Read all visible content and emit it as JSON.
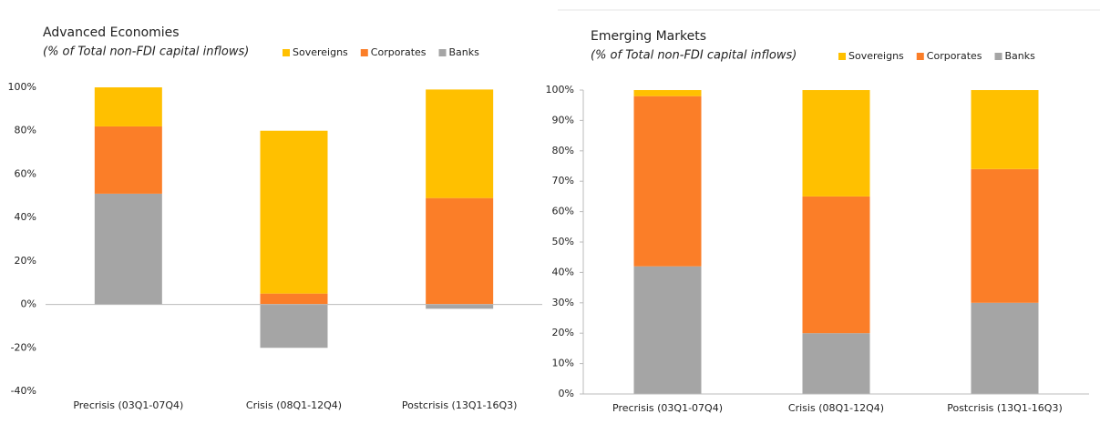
{
  "chart_data": [
    {
      "type": "bar",
      "stacked": true,
      "title": "Advanced Economies",
      "subtitle": "(% of Total non-FDI capital inflows)",
      "categories": [
        "Precrisis (03Q1-07Q4)",
        "Crisis (08Q1-12Q4)",
        "Postcrisis (13Q1-16Q3)"
      ],
      "series": [
        {
          "name": "Sovereigns",
          "color": "#ffc000",
          "values": [
            18,
            75,
            50
          ]
        },
        {
          "name": "Corporates",
          "color": "#fb7e28",
          "values": [
            31,
            5,
            49
          ]
        },
        {
          "name": "Banks",
          "color": "#a5a5a5",
          "values": [
            51,
            -20,
            -2
          ]
        }
      ],
      "ylim": [
        -40,
        100
      ],
      "yticks": [
        {
          "value": -40,
          "label": "-40%"
        },
        {
          "value": -20,
          "label": "-20%"
        },
        {
          "value": 0,
          "label": "0%"
        },
        {
          "value": 20,
          "label": "20%"
        },
        {
          "value": 40,
          "label": "40%"
        },
        {
          "value": 60,
          "label": "60%"
        },
        {
          "value": 80,
          "label": "80%"
        },
        {
          "value": 100,
          "label": "100%"
        }
      ],
      "legend": "top"
    },
    {
      "type": "bar",
      "stacked": true,
      "title": "Emerging Markets",
      "subtitle": "(% of Total non-FDI capital inflows)",
      "categories": [
        "Precrisis (03Q1-07Q4)",
        "Crisis (08Q1-12Q4)",
        "Postcrisis (13Q1-16Q3)"
      ],
      "series": [
        {
          "name": "Sovereigns",
          "color": "#ffc000",
          "values": [
            2,
            35,
            26
          ]
        },
        {
          "name": "Corporates",
          "color": "#fb7e28",
          "values": [
            56,
            45,
            44
          ]
        },
        {
          "name": "Banks",
          "color": "#a5a5a5",
          "values": [
            42,
            20,
            30
          ]
        }
      ],
      "ylim": [
        0,
        100
      ],
      "yticks": [
        {
          "value": 0,
          "label": "0%"
        },
        {
          "value": 10,
          "label": "10%"
        },
        {
          "value": 20,
          "label": "20%"
        },
        {
          "value": 30,
          "label": "30%"
        },
        {
          "value": 40,
          "label": "40%"
        },
        {
          "value": 50,
          "label": "50%"
        },
        {
          "value": 60,
          "label": "60%"
        },
        {
          "value": 70,
          "label": "70%"
        },
        {
          "value": 80,
          "label": "80%"
        },
        {
          "value": 90,
          "label": "90%"
        },
        {
          "value": 100,
          "label": "100%"
        }
      ],
      "legend": "top"
    }
  ]
}
